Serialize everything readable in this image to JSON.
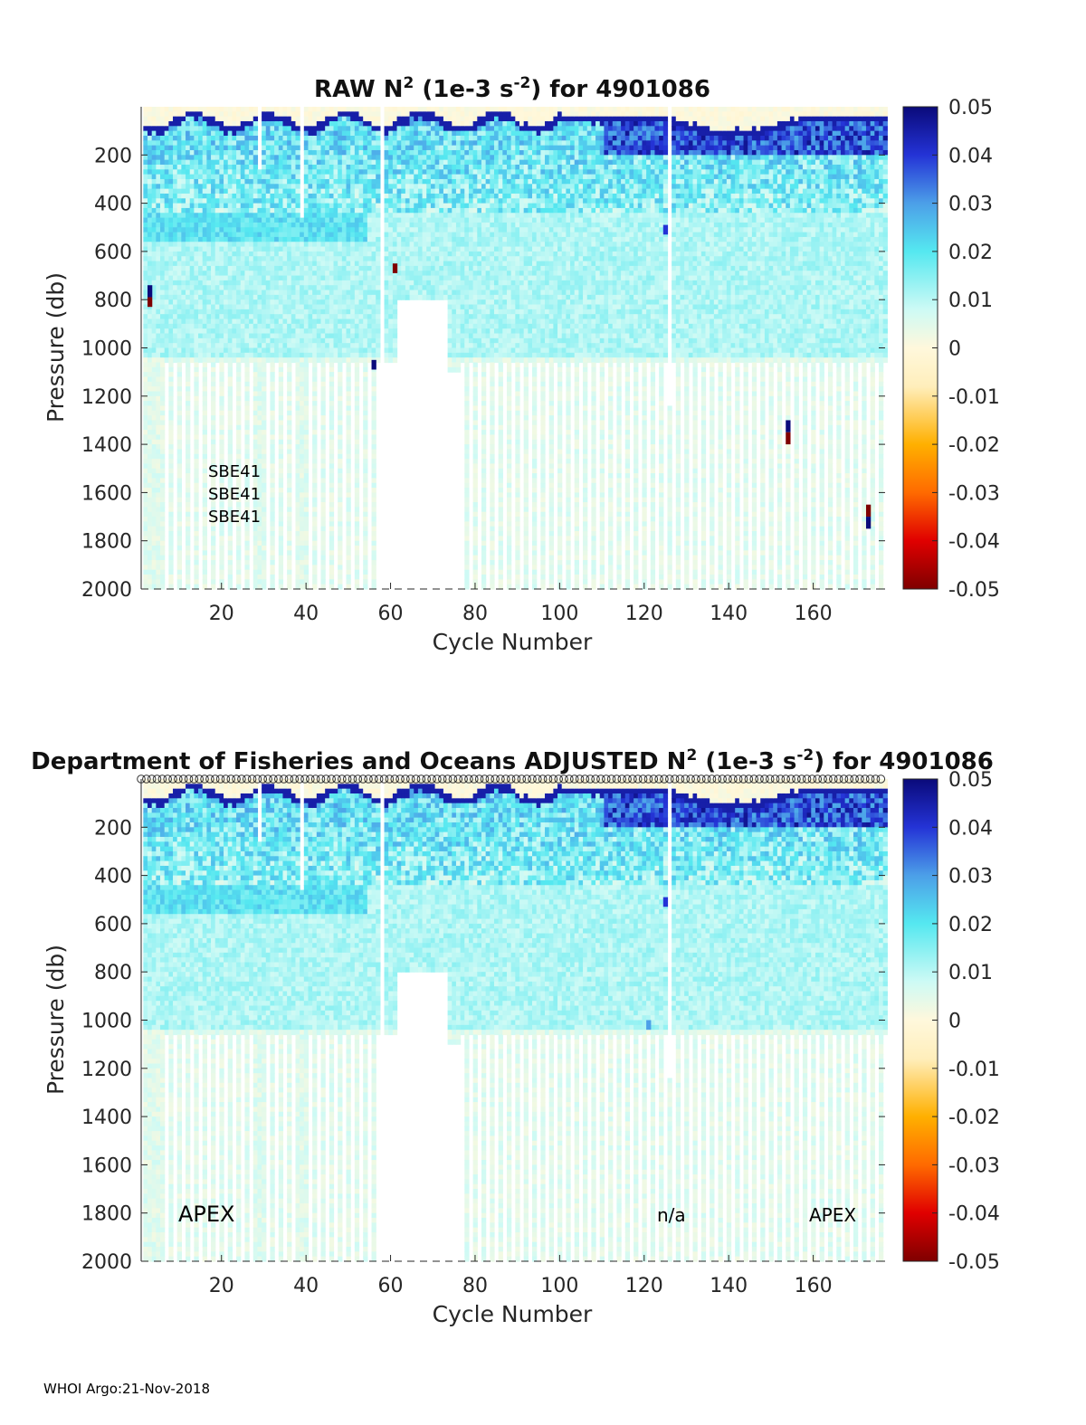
{
  "footer": "WHOI Argo:21-Nov-2018",
  "colormap": {
    "stops": [
      [
        0.0,
        "#7f0000"
      ],
      [
        0.1,
        "#e00000"
      ],
      [
        0.2,
        "#ff6a00"
      ],
      [
        0.3,
        "#ffb000"
      ],
      [
        0.42,
        "#ffeebb"
      ],
      [
        0.5,
        "#fff8dc"
      ],
      [
        0.58,
        "#cdfaf5"
      ],
      [
        0.7,
        "#55e8f0"
      ],
      [
        0.8,
        "#4c9fe8"
      ],
      [
        0.9,
        "#2433d6"
      ],
      [
        1.0,
        "#0a0a7a"
      ]
    ]
  },
  "chart_data": [
    {
      "type": "heatmap",
      "name": "raw",
      "title_parts": [
        "RAW N",
        "2",
        " (1e-3 s",
        "-2",
        ") for 4901086"
      ],
      "xlabel": "Cycle Number",
      "ylabel": "Pressure (db)",
      "xlim": [
        1,
        177
      ],
      "ylim": [
        0,
        2000
      ],
      "y_reversed": true,
      "x_ticks": [
        "20",
        "40",
        "60",
        "80",
        "100",
        "120",
        "140",
        "160"
      ],
      "y_ticks": [
        "200",
        "400",
        "600",
        "800",
        "1000",
        "1200",
        "1400",
        "1600",
        "1800",
        "2000"
      ],
      "colorbar": {
        "clim": [
          -0.05,
          0.05
        ],
        "ticks": [
          "0.05",
          "0.04",
          "0.03",
          "0.02",
          "0.01",
          "0",
          "-0.01",
          "-0.02",
          "-0.03",
          "-0.04",
          "-0.05"
        ]
      },
      "annotations": [
        "SBE41",
        "SBE41",
        "SBE41"
      ],
      "outliers": [
        {
          "cycle": 3,
          "p_from": 740,
          "p_to": 790,
          "value": 0.05
        },
        {
          "cycle": 3,
          "p_from": 790,
          "p_to": 830,
          "value": -0.05
        },
        {
          "cycle": 56,
          "p_from": 1050,
          "p_to": 1090,
          "value": 0.05
        },
        {
          "cycle": 61,
          "p_from": 650,
          "p_to": 690,
          "value": -0.05
        },
        {
          "cycle": 125,
          "p_from": 490,
          "p_to": 530,
          "value": 0.04
        },
        {
          "cycle": 154,
          "p_from": 1300,
          "p_to": 1350,
          "value": 0.05
        },
        {
          "cycle": 154,
          "p_from": 1350,
          "p_to": 1400,
          "value": -0.05
        },
        {
          "cycle": 173,
          "p_from": 1650,
          "p_to": 1700,
          "value": -0.05
        },
        {
          "cycle": 173,
          "p_from": 1700,
          "p_to": 1750,
          "value": 0.05
        }
      ]
    },
    {
      "type": "heatmap",
      "name": "adjusted",
      "title_parts": [
        "Department of Fisheries and Oceans  ADJUSTED N",
        "2",
        " (1e-3 s",
        "-2",
        ") for 4901086"
      ],
      "xlabel": "Cycle Number",
      "ylabel": "Pressure (db)",
      "xlim": [
        1,
        177
      ],
      "ylim": [
        0,
        2000
      ],
      "y_reversed": true,
      "x_ticks": [
        "20",
        "40",
        "60",
        "80",
        "100",
        "120",
        "140",
        "160"
      ],
      "y_ticks": [
        "200",
        "400",
        "600",
        "800",
        "1000",
        "1200",
        "1400",
        "1600",
        "1800",
        "2000"
      ],
      "colorbar": {
        "clim": [
          -0.05,
          0.05
        ],
        "ticks": [
          "0.05",
          "0.04",
          "0.03",
          "0.02",
          "0.01",
          "0",
          "-0.01",
          "-0.02",
          "-0.03",
          "-0.04",
          "-0.05"
        ]
      },
      "annotations": [
        "APEX",
        "n/a",
        "APEX"
      ],
      "qc_markers": "o",
      "outliers": [
        {
          "cycle": 125,
          "p_from": 490,
          "p_to": 530,
          "value": 0.04
        },
        {
          "cycle": 121,
          "p_from": 1000,
          "p_to": 1040,
          "value": 0.03
        }
      ]
    }
  ]
}
